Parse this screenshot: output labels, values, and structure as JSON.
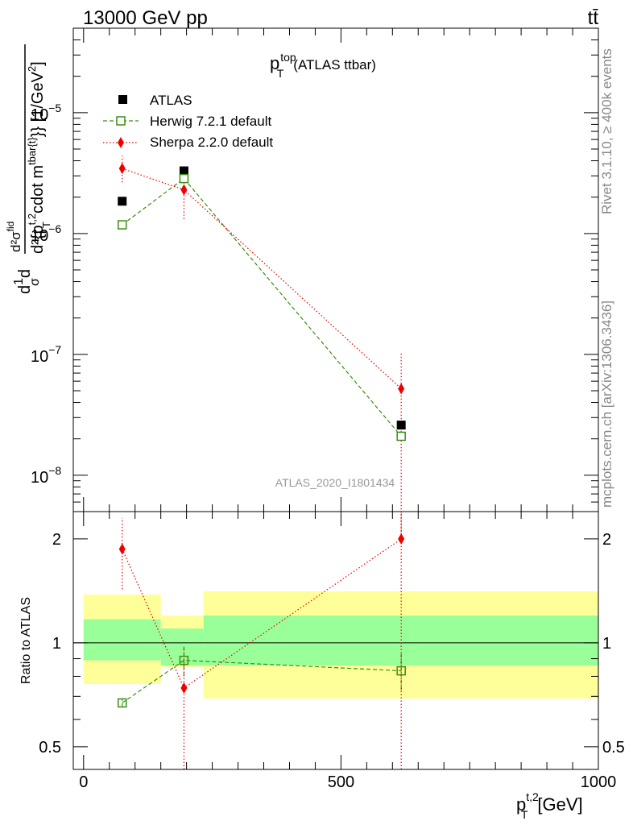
{
  "header": {
    "energy_label": "13000 GeV pp",
    "process_label": "tt̄"
  },
  "side_labels": {
    "rivet": "Rivet 3.1.10, ≥ 400k events",
    "mcplots": "mcplots.cern.ch [arXiv:1306.3436]"
  },
  "colors": {
    "atlas": "#000000",
    "herwig": "#3a8f12",
    "sherpa": "#ee0000",
    "band_inner": "#99ff99",
    "band_outer": "#ffff99",
    "watermark": "#999999"
  },
  "chart_data": [
    {
      "type": "scatter",
      "title_main": "p",
      "title_sup": "top",
      "title_sub": "T",
      "title_rest": "(ATLAS ttbar)",
      "watermark": "ATLAS_2020_I1801434",
      "ylabel": "d\\frac{1}{σ}d\\frac{d^2σ^{fid}}{d^2{p_T^{t,2} cdot m^{tbar{t}}}} [1/GeV^2]",
      "ylabel_parts": {
        "a": "d",
        "b": "1",
        "c": "σ",
        "d": "d",
        "e": "d²σ",
        "e_sup": "fid",
        "f": "d²{p",
        "f_sub": "T",
        "f_sup": "t,2",
        "g": "cdot m",
        "g_sup": "tbar{t}",
        "h": "}} [1/GeV",
        "h_sup": "2",
        "i": "]"
      },
      "yscale": "log",
      "ylim": [
        5e-09,
        5e-05
      ],
      "xlim": [
        -20,
        1000
      ],
      "ytick_labels": [
        {
          "value": 1e-05,
          "base": "10",
          "exp": "−5"
        },
        {
          "value": 1e-06,
          "base": "10",
          "exp": "−6"
        },
        {
          "value": 1e-07,
          "base": "10",
          "exp": "−7"
        },
        {
          "value": 1e-08,
          "base": "10",
          "exp": "−8"
        }
      ],
      "series": [
        {
          "name": "ATLAS",
          "marker": "square-filled",
          "x": [
            75,
            195,
            617
          ],
          "y": [
            1.85e-06,
            3.3e-06,
            2.6e-08
          ]
        },
        {
          "name": "Herwig 7.2.1 default",
          "marker": "square-open",
          "line": "dashed",
          "x": [
            75,
            195,
            617
          ],
          "y": [
            1.18e-06,
            2.85e-06,
            2.1e-08
          ]
        },
        {
          "name": "Sherpa 2.2.0 default",
          "marker": "diamond",
          "line": "dotted",
          "x": [
            75,
            195,
            617
          ],
          "y": [
            3.45e-06,
            2.3e-06,
            5.2e-08
          ],
          "yerr_low": [
            2.65e-06,
            1.32e-06,
            3e-09
          ],
          "yerr_high": [
            4.4e-06,
            2.85e-06,
            1.05e-07
          ]
        }
      ],
      "legend_position": "top-left"
    },
    {
      "type": "scatter",
      "ylabel": "Ratio to ATLAS",
      "xlabel_main": "p",
      "xlabel_sup": "t,2",
      "xlabel_sub": "T",
      "xlabel_rest": "[GeV]",
      "yscale": "log",
      "ylim": [
        0.43,
        2.4
      ],
      "xlim": [
        -20,
        1000
      ],
      "xticks": [
        0,
        500,
        1000
      ],
      "yticks": [
        0.5,
        1,
        2
      ],
      "ytick_labels": [
        "0.5",
        "1",
        "2"
      ],
      "bands": [
        {
          "x": [
            0,
            150
          ],
          "inner": [
            0.89,
            1.17
          ],
          "outer": [
            0.76,
            1.38
          ]
        },
        {
          "x": [
            150,
            233
          ],
          "inner": [
            0.86,
            1.1
          ],
          "outer": [
            0.85,
            1.2
          ]
        },
        {
          "x": [
            233,
            1000
          ],
          "inner": [
            0.86,
            1.2
          ],
          "outer": [
            0.69,
            1.41
          ]
        }
      ],
      "series": [
        {
          "name": "Herwig 7.2.1 default",
          "x": [
            75,
            195,
            617
          ],
          "y": [
            0.67,
            0.89,
            0.83
          ],
          "yerr_low": [
            0.65,
            0.8,
            0.73
          ],
          "yerr_high": [
            0.69,
            0.98,
            0.93
          ]
        },
        {
          "name": "Sherpa 2.2.0 default",
          "x": [
            75,
            195,
            617
          ],
          "y": [
            1.87,
            0.74,
            2.0
          ],
          "yerr_low": [
            1.43,
            0.43,
            0.43
          ],
          "yerr_high": [
            2.3,
            0.97,
            2.4
          ]
        }
      ]
    }
  ]
}
